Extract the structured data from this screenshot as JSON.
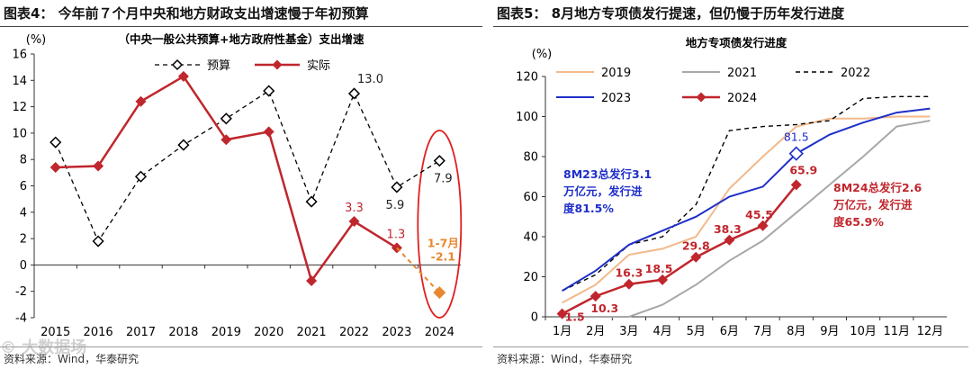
{
  "panels": [
    {
      "figure_title": "图表4： 今年前７个月中央和地方财政支出增速慢于年初预算",
      "source": "资料来源：Wind，华泰研究"
    },
    {
      "figure_title": "图表5： 8月地方专项债发行提速，但仍慢于历年发行进度",
      "source": "资料来源：Wind，华泰研究"
    }
  ],
  "watermark": "© 大数据场",
  "chart_data": [
    {
      "type": "line",
      "title": "（中央一般公共预算+地方政府性基金）支出增速",
      "ylabel": "(%)",
      "ylim": [
        -4,
        16
      ],
      "yticks": [
        -4,
        -2,
        0,
        2,
        4,
        6,
        8,
        10,
        12,
        14,
        16
      ],
      "categories": [
        "2015",
        "2016",
        "2017",
        "2018",
        "2019",
        "2020",
        "2021",
        "2022",
        "2023",
        "2024"
      ],
      "legend": {
        "position": "top",
        "entries": [
          "预算",
          "实际"
        ]
      },
      "series": [
        {
          "name": "预算",
          "color": "#000000",
          "style": "dashed",
          "marker": "open-diamond",
          "values": [
            9.3,
            1.8,
            6.7,
            9.1,
            11.1,
            13.2,
            4.8,
            13.0,
            5.9,
            7.9
          ]
        },
        {
          "name": "实际",
          "color": "#c0262d",
          "style": "solid",
          "marker": "filled-diamond",
          "values": [
            7.4,
            7.5,
            12.4,
            14.3,
            9.5,
            10.1,
            -1.2,
            3.3,
            1.3,
            null
          ]
        },
        {
          "name": "1-7月",
          "color": "#e8872f",
          "style": "dashed",
          "marker": "filled-diamond",
          "values": [
            null,
            null,
            null,
            null,
            null,
            null,
            null,
            null,
            1.3,
            -2.1
          ]
        }
      ],
      "annotations": [
        {
          "text": "13.0",
          "color": "#222222"
        },
        {
          "text": "5.9",
          "color": "#222222"
        },
        {
          "text": "7.9",
          "color": "#222222"
        },
        {
          "text": "3.3",
          "color": "#c0262d"
        },
        {
          "text": "1.3",
          "color": "#c0262d"
        },
        {
          "text": "1-7月",
          "color": "#e8872f"
        },
        {
          "text": "-2.1",
          "color": "#e8872f"
        }
      ],
      "highlight": {
        "shape": "ellipse",
        "color": "#e02020",
        "category": "2024"
      }
    },
    {
      "type": "line",
      "title": "地方专项债发行进度",
      "ylabel": "(%)",
      "ylim": [
        0,
        120
      ],
      "yticks": [
        0,
        20,
        40,
        60,
        80,
        100,
        120
      ],
      "categories": [
        "1月",
        "2月",
        "3月",
        "4月",
        "5月",
        "6月",
        "7月",
        "8月",
        "9月",
        "10月",
        "11月",
        "12月"
      ],
      "legend": {
        "position": "top-left",
        "entries": [
          "2019",
          "2021",
          "2022",
          "2023",
          "2024"
        ]
      },
      "series": [
        {
          "name": "2019",
          "color": "#f3b98a",
          "style": "solid",
          "values": [
            7,
            16,
            31,
            34,
            40,
            64,
            80,
            95,
            99,
            99,
            100,
            100
          ]
        },
        {
          "name": "2021",
          "color": "#a8a8a8",
          "style": "solid",
          "values": [
            0,
            0,
            0,
            6,
            16,
            28,
            38,
            52,
            66,
            80,
            95,
            98
          ]
        },
        {
          "name": "2022",
          "color": "#000000",
          "style": "dashed",
          "values": [
            13,
            21,
            36,
            40,
            56,
            93,
            95,
            96,
            98,
            109,
            110,
            110
          ]
        },
        {
          "name": "2023",
          "color": "#1f2fc8",
          "style": "solid",
          "values": [
            13,
            23,
            36,
            43,
            50,
            60,
            65,
            81.5,
            91,
            97,
            102,
            104
          ]
        },
        {
          "name": "2024",
          "color": "#c0262d",
          "style": "solid",
          "marker": "filled-diamond",
          "values": [
            1.5,
            10.3,
            16.3,
            18.5,
            29.8,
            38.3,
            45.5,
            65.9,
            null,
            null,
            null,
            null
          ]
        }
      ],
      "point_labels_2024": [
        "1.5",
        "10.3",
        "16.3",
        "18.5",
        "29.8",
        "38.3",
        "45.5",
        "65.9"
      ],
      "point_label_2023_aug": "81.5",
      "annotations": [
        {
          "lines": [
            "8M23总发行3.1",
            "万亿元，发行进",
            "度81.5%"
          ],
          "color": "#1f2fc8"
        },
        {
          "lines": [
            "8M24总发行2.6",
            "万亿元，发行进",
            "度65.9%"
          ],
          "color": "#c0262d"
        }
      ]
    }
  ]
}
